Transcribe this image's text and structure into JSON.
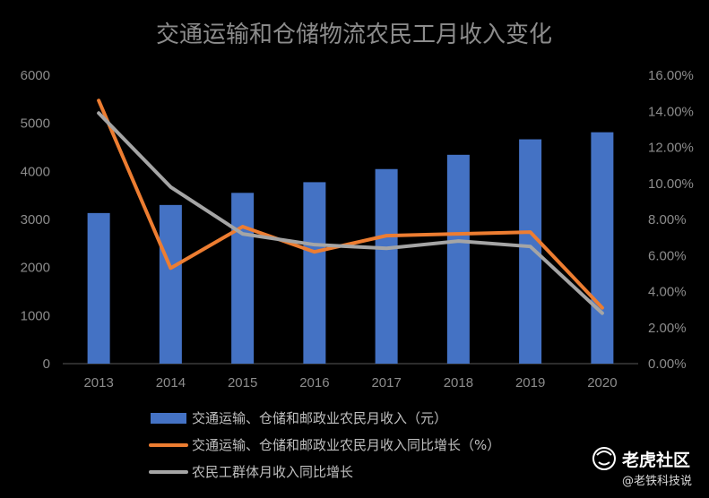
{
  "chart_data": {
    "type": "bar",
    "title": "交通运输和仓储物流农民工月收入变化",
    "categories": [
      "2013",
      "2014",
      "2015",
      "2016",
      "2017",
      "2018",
      "2019",
      "2020"
    ],
    "left_axis": {
      "range": [
        0,
        6000
      ],
      "ticks": [
        "0",
        "1000",
        "2000",
        "3000",
        "4000",
        "5000",
        "6000"
      ]
    },
    "right_axis": {
      "range": [
        0,
        0.16
      ],
      "ticks": [
        "0.00%",
        "2.00%",
        "4.00%",
        "6.00%",
        "8.00%",
        "10.00%",
        "12.00%",
        "14.00%",
        "16.00%"
      ]
    },
    "series": [
      {
        "name": "交通运输、仓储和邮政业农民月收入（元）",
        "kind": "bar",
        "axis": "left",
        "color": "#4472c4",
        "values": [
          3133,
          3301,
          3553,
          3775,
          4048,
          4345,
          4667,
          4814
        ]
      },
      {
        "name": "交通运输、仓储和邮政业农民月收入同比增长（%）",
        "kind": "line",
        "axis": "right",
        "color": "#ed7d31",
        "values": [
          0.146,
          0.053,
          0.076,
          0.062,
          0.071,
          0.072,
          0.073,
          0.031
        ]
      },
      {
        "name": "农民工群体月收入同比增长",
        "kind": "line",
        "axis": "right",
        "color": "#a5a5a5",
        "values": [
          0.139,
          0.098,
          0.072,
          0.066,
          0.064,
          0.068,
          0.065,
          0.028
        ]
      }
    ],
    "grid": false,
    "legend_position": "bottom"
  },
  "watermark": {
    "brand": "老虎社区",
    "handle": "@老铁科技说"
  }
}
